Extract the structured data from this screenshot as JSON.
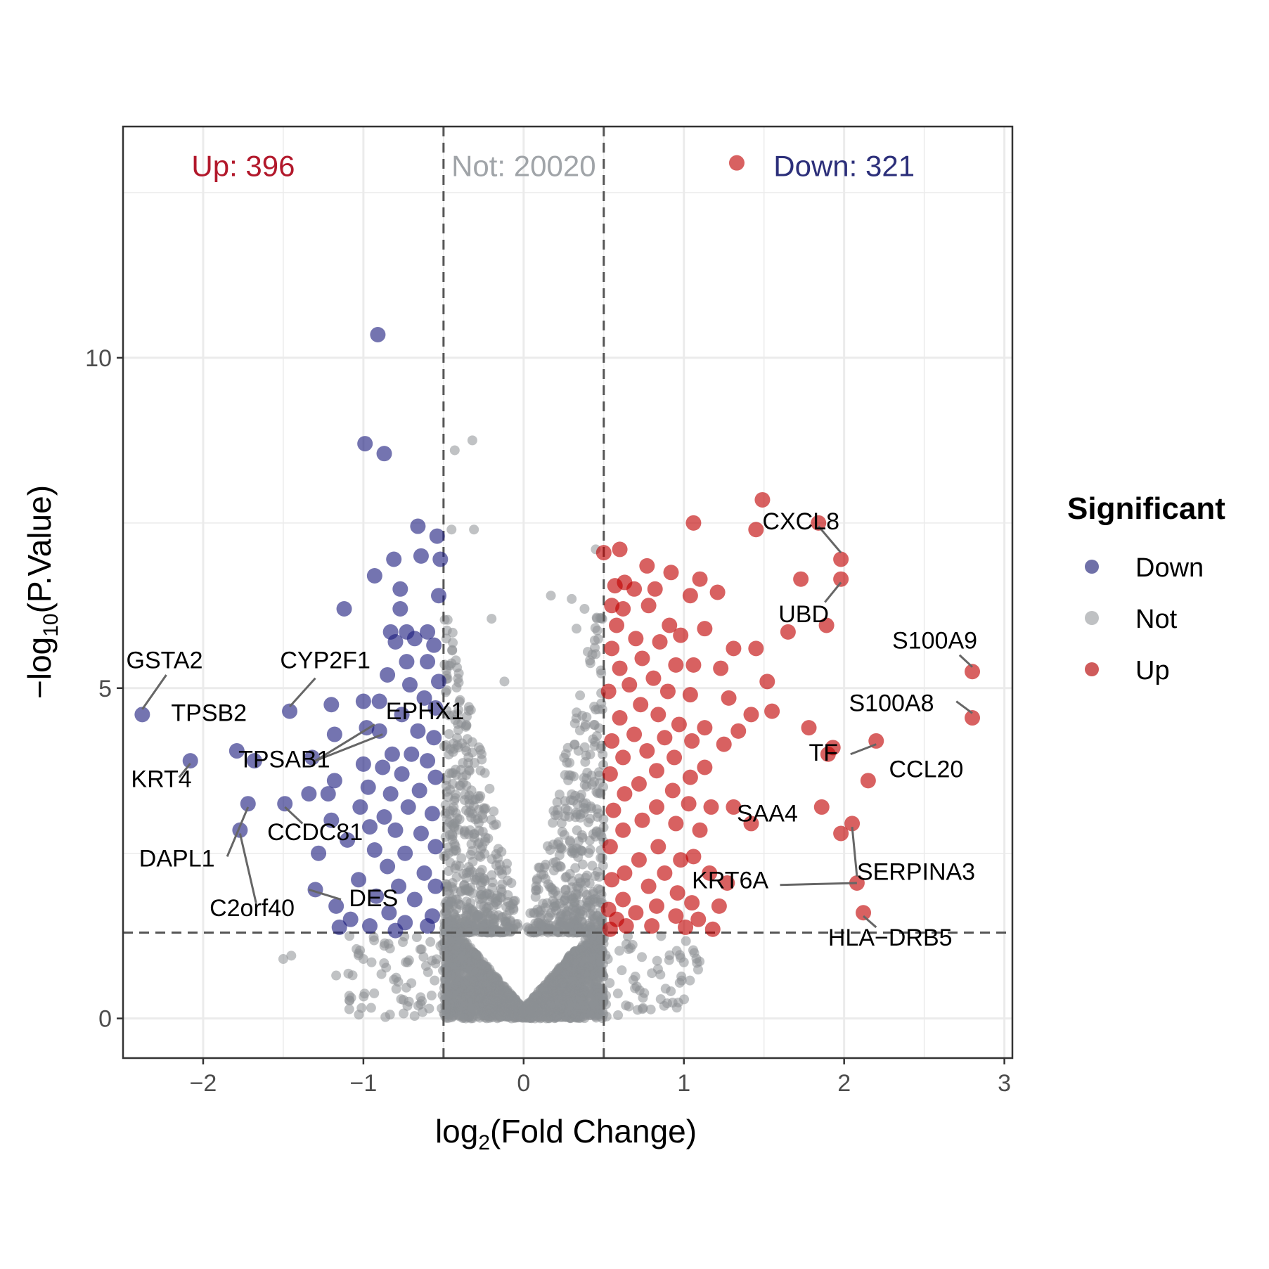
{
  "chart_data": {
    "type": "scatter",
    "title": "",
    "xlabel": "log2(Fold Change)",
    "xlabel_main": "log",
    "xlabel_sub": "2",
    "xlabel_rest": "(Fold Change)",
    "ylabel": "-log10(P.Value)",
    "ylabel_main": "−log",
    "ylabel_sub": "10",
    "ylabel_rest": "(P.Value)",
    "xlim": [
      -2.5,
      3.05
    ],
    "ylim": [
      -0.6,
      13.5
    ],
    "x_ticks": [
      -2,
      -1,
      0,
      1,
      2,
      3
    ],
    "x_tick_labels": [
      "−2",
      "−1",
      "0",
      "1",
      "2",
      "3"
    ],
    "y_ticks": [
      0,
      5,
      10
    ],
    "y_tick_labels": [
      "0",
      "5",
      "10"
    ],
    "thresholds": {
      "logfc": [
        -0.5,
        0.5
      ],
      "p_line": 1.3
    },
    "counts": [
      {
        "text": "Up: 396",
        "x": -1.75,
        "y": 12.75,
        "color": "#b2182b"
      },
      {
        "text": "Not: 20020",
        "x": 0,
        "y": 12.75,
        "color": "#a0a4a8"
      },
      {
        "text": "Down: 321",
        "x": 2.0,
        "y": 12.75,
        "color": "#2c2f7a"
      }
    ],
    "legend": {
      "title": "Significant",
      "position": "right",
      "items": [
        {
          "label": "Down",
          "color": "#6f70a8"
        },
        {
          "label": "Not",
          "color": "#bfc1c3"
        },
        {
          "label": "Up",
          "color": "#cf5b5b"
        }
      ]
    },
    "colors": {
      "Down": "#1f1f80",
      "Not": "#8c8f94",
      "Up": "#c00000"
    },
    "series": [
      {
        "name": "Down",
        "points": [
          [
            -0.91,
            10.35
          ],
          [
            -0.99,
            8.7
          ],
          [
            -0.87,
            8.55
          ],
          [
            -0.66,
            7.45
          ],
          [
            -0.54,
            7.3
          ],
          [
            -0.64,
            7.0
          ],
          [
            -0.52,
            6.95
          ],
          [
            -0.81,
            6.95
          ],
          [
            -0.93,
            6.7
          ],
          [
            -0.77,
            6.5
          ],
          [
            -0.53,
            6.4
          ],
          [
            -1.12,
            6.2
          ],
          [
            -0.77,
            6.2
          ],
          [
            -0.83,
            5.85
          ],
          [
            -0.73,
            5.85
          ],
          [
            -0.6,
            5.85
          ],
          [
            -0.68,
            5.75
          ],
          [
            -0.8,
            5.7
          ],
          [
            -0.56,
            5.65
          ],
          [
            -0.73,
            5.4
          ],
          [
            -0.6,
            5.4
          ],
          [
            -0.85,
            5.2
          ],
          [
            -0.53,
            5.1
          ],
          [
            -0.71,
            5.05
          ],
          [
            -1.0,
            4.8
          ],
          [
            -0.9,
            4.8
          ],
          [
            -0.62,
            4.85
          ],
          [
            -1.2,
            4.75
          ],
          [
            -0.55,
            4.7
          ],
          [
            -0.76,
            4.6
          ],
          [
            -0.98,
            4.4
          ],
          [
            -0.9,
            4.35
          ],
          [
            -0.66,
            4.35
          ],
          [
            -1.18,
            4.3
          ],
          [
            -0.56,
            4.25
          ],
          [
            -0.82,
            4.0
          ],
          [
            -0.7,
            4.0
          ],
          [
            -1.32,
            3.95
          ],
          [
            -1.0,
            3.85
          ],
          [
            -0.6,
            3.9
          ],
          [
            -0.88,
            3.8
          ],
          [
            -1.18,
            3.6
          ],
          [
            -0.76,
            3.7
          ],
          [
            -0.55,
            3.65
          ],
          [
            -0.97,
            3.5
          ],
          [
            -0.83,
            3.4
          ],
          [
            -1.22,
            3.4
          ],
          [
            -0.65,
            3.45
          ],
          [
            -1.02,
            3.2
          ],
          [
            -0.72,
            3.2
          ],
          [
            -0.57,
            3.1
          ],
          [
            -0.87,
            3.05
          ],
          [
            -1.2,
            3.0
          ],
          [
            -0.96,
            2.9
          ],
          [
            -0.8,
            2.85
          ],
          [
            -0.64,
            2.8
          ],
          [
            -1.1,
            2.7
          ],
          [
            -0.55,
            2.6
          ],
          [
            -0.93,
            2.55
          ],
          [
            -0.74,
            2.5
          ],
          [
            -1.28,
            2.5
          ],
          [
            -0.85,
            2.3
          ],
          [
            -0.62,
            2.2
          ],
          [
            -1.03,
            2.1
          ],
          [
            -0.78,
            2.0
          ],
          [
            -0.55,
            2.0
          ],
          [
            -1.3,
            1.95
          ],
          [
            -0.92,
            1.85
          ],
          [
            -0.68,
            1.8
          ],
          [
            -1.17,
            1.7
          ],
          [
            -0.84,
            1.6
          ],
          [
            -0.57,
            1.55
          ],
          [
            -1.08,
            1.5
          ],
          [
            -0.74,
            1.45
          ],
          [
            -0.96,
            1.4
          ],
          [
            -1.15,
            1.38
          ],
          [
            -0.6,
            1.4
          ],
          [
            -0.8,
            1.33
          ],
          [
            -2.38,
            4.6
          ],
          [
            -2.08,
            3.9
          ],
          [
            -1.79,
            4.05
          ],
          [
            -1.72,
            3.25
          ],
          [
            -1.77,
            2.85
          ],
          [
            -1.49,
            3.25
          ],
          [
            -1.46,
            4.65
          ],
          [
            -1.68,
            3.9
          ],
          [
            -1.34,
            3.4
          ]
        ]
      },
      {
        "name": "Up",
        "points": [
          [
            1.33,
            12.95
          ],
          [
            1.49,
            7.85
          ],
          [
            1.06,
            7.5
          ],
          [
            1.45,
            7.4
          ],
          [
            1.84,
            7.5
          ],
          [
            1.98,
            6.95
          ],
          [
            0.6,
            7.1
          ],
          [
            0.63,
            6.6
          ],
          [
            0.77,
            6.85
          ],
          [
            0.5,
            7.05
          ],
          [
            0.92,
            6.75
          ],
          [
            1.1,
            6.65
          ],
          [
            1.73,
            6.65
          ],
          [
            1.98,
            6.65
          ],
          [
            0.57,
            6.55
          ],
          [
            0.69,
            6.5
          ],
          [
            0.82,
            6.5
          ],
          [
            1.21,
            6.45
          ],
          [
            0.62,
            6.2
          ],
          [
            0.78,
            6.25
          ],
          [
            1.04,
            6.4
          ],
          [
            0.55,
            6.25
          ],
          [
            0.91,
            5.95
          ],
          [
            1.13,
            5.9
          ],
          [
            0.58,
            5.95
          ],
          [
            0.98,
            5.8
          ],
          [
            1.65,
            5.85
          ],
          [
            1.89,
            5.95
          ],
          [
            0.7,
            5.75
          ],
          [
            0.85,
            5.7
          ],
          [
            1.45,
            5.6
          ],
          [
            1.31,
            5.6
          ],
          [
            0.55,
            5.6
          ],
          [
            0.74,
            5.45
          ],
          [
            0.95,
            5.35
          ],
          [
            1.06,
            5.35
          ],
          [
            0.6,
            5.3
          ],
          [
            0.81,
            5.15
          ],
          [
            1.23,
            5.3
          ],
          [
            1.52,
            5.1
          ],
          [
            0.66,
            5.05
          ],
          [
            0.9,
            4.95
          ],
          [
            1.04,
            4.9
          ],
          [
            0.53,
            4.95
          ],
          [
            1.28,
            4.85
          ],
          [
            0.73,
            4.75
          ],
          [
            1.42,
            4.6
          ],
          [
            1.55,
            4.65
          ],
          [
            0.84,
            4.6
          ],
          [
            1.13,
            4.4
          ],
          [
            0.6,
            4.55
          ],
          [
            0.97,
            4.45
          ],
          [
            1.78,
            4.4
          ],
          [
            1.34,
            4.35
          ],
          [
            0.69,
            4.3
          ],
          [
            0.88,
            4.25
          ],
          [
            1.05,
            4.2
          ],
          [
            0.55,
            4.2
          ],
          [
            1.25,
            4.15
          ],
          [
            0.77,
            4.05
          ],
          [
            0.94,
            3.95
          ],
          [
            1.9,
            4.0
          ],
          [
            0.62,
            3.95
          ],
          [
            1.13,
            3.8
          ],
          [
            0.83,
            3.75
          ],
          [
            1.04,
            3.65
          ],
          [
            0.54,
            3.7
          ],
          [
            0.72,
            3.55
          ],
          [
            0.93,
            3.45
          ],
          [
            0.63,
            3.4
          ],
          [
            1.03,
            3.25
          ],
          [
            0.83,
            3.2
          ],
          [
            1.17,
            3.2
          ],
          [
            1.31,
            3.2
          ],
          [
            0.56,
            3.15
          ],
          [
            1.86,
            3.2
          ],
          [
            0.74,
            3.0
          ],
          [
            0.95,
            2.95
          ],
          [
            1.1,
            2.85
          ],
          [
            0.62,
            2.85
          ],
          [
            1.42,
            2.95
          ],
          [
            1.98,
            2.8
          ],
          [
            0.84,
            2.6
          ],
          [
            0.54,
            2.6
          ],
          [
            0.72,
            2.4
          ],
          [
            0.98,
            2.4
          ],
          [
            1.06,
            2.45
          ],
          [
            0.63,
            2.2
          ],
          [
            0.88,
            2.2
          ],
          [
            1.16,
            2.2
          ],
          [
            0.55,
            2.1
          ],
          [
            1.27,
            2.05
          ],
          [
            0.78,
            2.0
          ],
          [
            0.96,
            1.9
          ],
          [
            0.62,
            1.8
          ],
          [
            0.83,
            1.7
          ],
          [
            1.05,
            1.75
          ],
          [
            0.53,
            1.65
          ],
          [
            1.22,
            1.7
          ],
          [
            0.7,
            1.6
          ],
          [
            0.95,
            1.55
          ],
          [
            0.58,
            1.5
          ],
          [
            1.09,
            1.5
          ],
          [
            0.8,
            1.4
          ],
          [
            0.64,
            1.4
          ],
          [
            1.18,
            1.35
          ],
          [
            0.54,
            1.35
          ],
          [
            1.01,
            1.38
          ],
          [
            2.8,
            5.25
          ],
          [
            2.8,
            4.55
          ],
          [
            2.2,
            4.2
          ],
          [
            1.93,
            4.1
          ],
          [
            2.15,
            3.6
          ],
          [
            2.05,
            2.95
          ],
          [
            2.08,
            2.05
          ],
          [
            2.12,
            1.6
          ]
        ]
      }
    ],
    "labels": [
      {
        "text": "GSTA2",
        "x": -2.48,
        "y": 5.3
      },
      {
        "text": "TPSB2",
        "x": -2.2,
        "y": 4.5
      },
      {
        "text": "KRT4",
        "x": -2.45,
        "y": 3.5
      },
      {
        "text": "DAPL1",
        "x": -2.4,
        "y": 2.3
      },
      {
        "text": "C2orf40",
        "x": -1.96,
        "y": 1.55
      },
      {
        "text": "CYP2F1",
        "x": -1.52,
        "y": 5.3
      },
      {
        "text": "EPHX1",
        "x": -0.86,
        "y": 4.53
      },
      {
        "text": "TPSAB1",
        "x": -1.78,
        "y": 3.8
      },
      {
        "text": "CCDC81",
        "x": -1.6,
        "y": 2.7
      },
      {
        "text": "DES",
        "x": -1.09,
        "y": 1.7
      },
      {
        "text": "CXCL8",
        "x": 1.49,
        "y": 7.4
      },
      {
        "text": "UBD",
        "x": 1.59,
        "y": 6.0
      },
      {
        "text": "S100A9",
        "x": 2.3,
        "y": 5.6
      },
      {
        "text": "S100A8",
        "x": 2.03,
        "y": 4.65
      },
      {
        "text": "TF",
        "x": 1.78,
        "y": 3.9
      },
      {
        "text": "CCL20",
        "x": 2.28,
        "y": 3.65
      },
      {
        "text": "SAA4",
        "x": 1.33,
        "y": 2.98
      },
      {
        "text": "SERPINA3",
        "x": 2.08,
        "y": 2.1
      },
      {
        "text": "KRT6A",
        "x": 1.05,
        "y": 1.97
      },
      {
        "text": "HLA−DRB5",
        "x": 1.9,
        "y": 1.1
      }
    ],
    "connectors": [
      [
        -2.38,
        4.68,
        -2.23,
        5.2
      ],
      [
        -2.08,
        3.86,
        -2.15,
        3.65
      ],
      [
        -1.72,
        3.2,
        -1.85,
        2.45
      ],
      [
        -1.77,
        2.8,
        -1.67,
        1.75
      ],
      [
        -1.46,
        4.72,
        -1.3,
        5.15
      ],
      [
        -1.49,
        3.2,
        -1.38,
        2.95
      ],
      [
        -1.3,
        3.9,
        -0.93,
        4.45
      ],
      [
        -1.3,
        3.9,
        -0.88,
        4.3
      ],
      [
        -1.34,
        1.95,
        -1.14,
        1.8
      ],
      [
        1.84,
        7.45,
        1.98,
        7.05
      ],
      [
        1.98,
        6.6,
        1.88,
        6.3
      ],
      [
        2.8,
        5.32,
        2.72,
        5.5
      ],
      [
        2.8,
        4.62,
        2.7,
        4.8
      ],
      [
        2.2,
        4.15,
        2.04,
        4.0
      ],
      [
        2.05,
        2.9,
        2.08,
        2.15
      ],
      [
        2.08,
        2.05,
        1.6,
        2.02
      ],
      [
        2.12,
        1.55,
        2.2,
        1.38
      ]
    ]
  }
}
